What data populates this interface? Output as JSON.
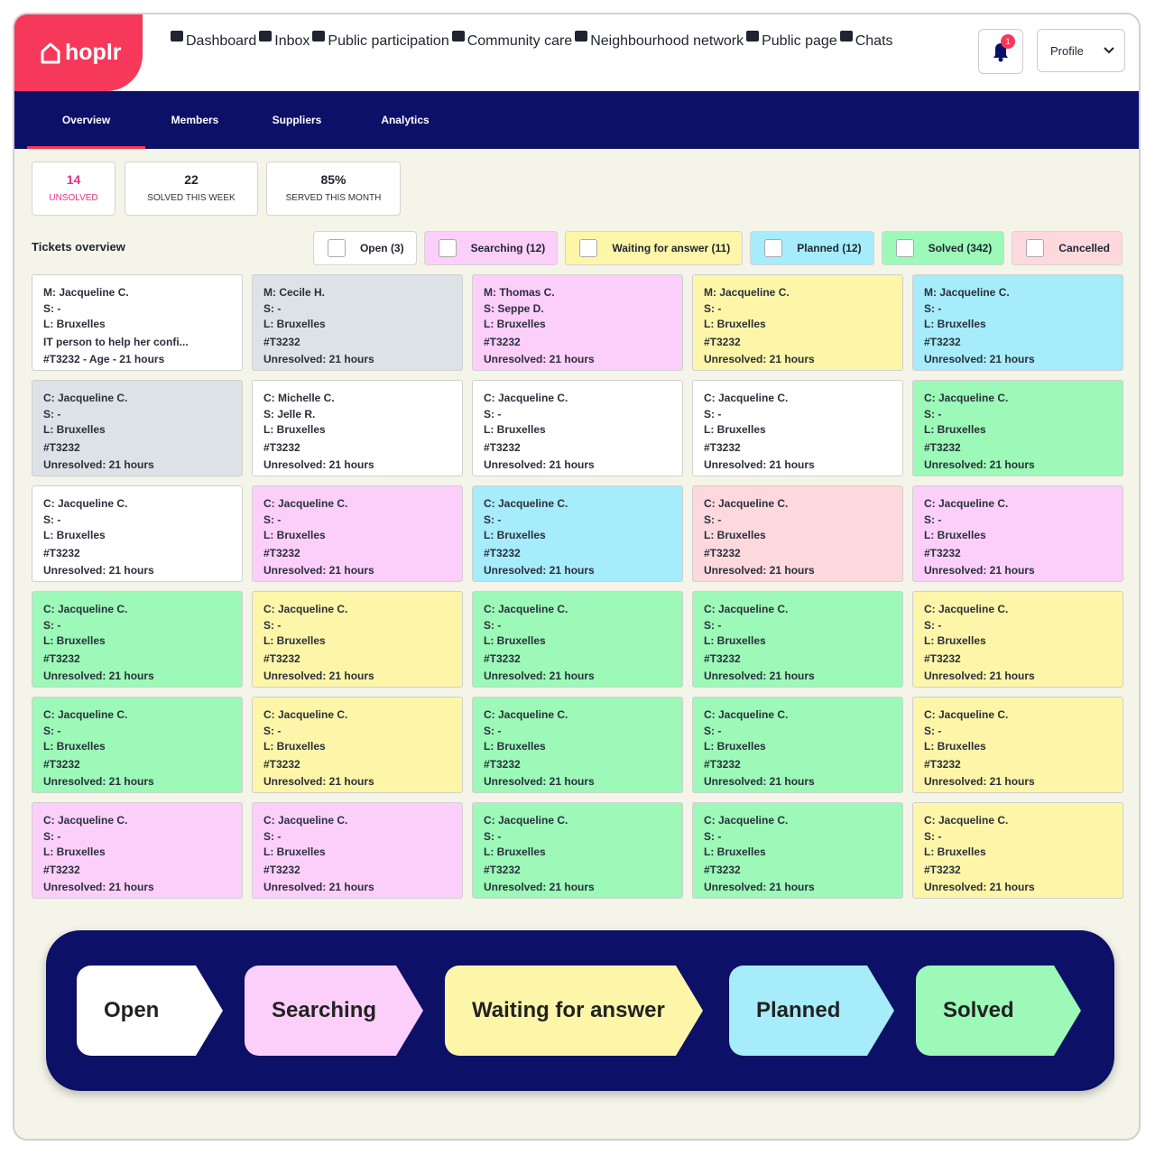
{
  "header": {
    "logo": "hoplr",
    "nav": [
      "Dashboard",
      "Inbox",
      "Public participation",
      "Community care",
      "Neighbourhood network",
      "Public page",
      "Chats"
    ],
    "notifications": "1",
    "profile": "Profile"
  },
  "subnav": [
    "Overview",
    "Members",
    "Suppliers",
    "Analytics"
  ],
  "stats": [
    {
      "value": "14",
      "label": "UNSOLVED"
    },
    {
      "value": "22",
      "label": "SOLVED THIS WEEK"
    },
    {
      "value": "85%",
      "label": "SERVED THIS MONTH"
    }
  ],
  "tickets_title": "Tickets overview",
  "filters": [
    {
      "label": "Open (3)",
      "color": "#ffffff"
    },
    {
      "label": "Searching (12)",
      "color": "#fccffb"
    },
    {
      "label": "Waiting for answer (11)",
      "color": "#fdf6a8"
    },
    {
      "label": "Planned (12)",
      "color": "#a6ecfb"
    },
    {
      "label": "Solved (342)",
      "color": "#9cf9b8"
    },
    {
      "label": "Cancelled",
      "color": "#fdd9de"
    }
  ],
  "tickets": [
    {
      "color": "#ffffff",
      "lines": [
        "M: Jacqueline C.",
        "S: -",
        "L: Bruxelles",
        "IT person to help her confi...",
        "#T3232 -  Age - 21 hours"
      ]
    },
    {
      "color": "#dde2e6",
      "lines": [
        "M: Cecile H.",
        "S: -",
        "L: Bruxelles",
        "#T3232",
        "Unresolved: 21 hours"
      ]
    },
    {
      "color": "#fccffb",
      "lines": [
        "M: Thomas C.",
        "S: Seppe D.",
        "L: Bruxelles",
        "#T3232",
        "Unresolved: 21 hours"
      ]
    },
    {
      "color": "#fdf6a8",
      "lines": [
        "M: Jacqueline C.",
        "S: -",
        "L: Bruxelles",
        "#T3232",
        "Unresolved: 21 hours"
      ]
    },
    {
      "color": "#a6ecfb",
      "lines": [
        "M: Jacqueline C.",
        "S: -",
        "L: Bruxelles",
        "#T3232",
        "Unresolved: 21 hours"
      ]
    },
    {
      "color": "#dde2e6",
      "lines": [
        "C: Jacqueline C.",
        "S: -",
        "L: Bruxelles",
        "#T3232",
        "Unresolved: 21 hours"
      ]
    },
    {
      "color": "#ffffff",
      "lines": [
        "C: Michelle C.",
        "S: Jelle R.",
        "L: Bruxelles",
        "#T3232",
        "Unresolved: 21 hours"
      ]
    },
    {
      "color": "#ffffff",
      "lines": [
        "C: Jacqueline C.",
        "S: -",
        "L: Bruxelles",
        "#T3232",
        "Unresolved: 21 hours"
      ]
    },
    {
      "color": "#ffffff",
      "lines": [
        "C: Jacqueline C.",
        "S: -",
        "L: Bruxelles",
        "#T3232",
        "Unresolved: 21 hours"
      ]
    },
    {
      "color": "#9cf9b8",
      "lines": [
        "C: Jacqueline C.",
        "S: -",
        "L: Bruxelles",
        "#T3232",
        "Unresolved: 21 hours"
      ]
    },
    {
      "color": "#ffffff",
      "lines": [
        "C: Jacqueline C.",
        "S: -",
        "L: Bruxelles",
        "#T3232",
        "Unresolved: 21 hours"
      ]
    },
    {
      "color": "#fccffb",
      "lines": [
        "C: Jacqueline C.",
        "S: -",
        "L: Bruxelles",
        "#T3232",
        "Unresolved: 21 hours"
      ]
    },
    {
      "color": "#a6ecfb",
      "lines": [
        "C: Jacqueline C.",
        "S: -",
        "L: Bruxelles",
        "#T3232",
        "Unresolved: 21 hours"
      ]
    },
    {
      "color": "#fdd9de",
      "lines": [
        "C: Jacqueline C.",
        "S: -",
        "L: Bruxelles",
        "#T3232",
        "Unresolved: 21 hours"
      ]
    },
    {
      "color": "#fccffb",
      "lines": [
        "C: Jacqueline C.",
        "S: -",
        "L: Bruxelles",
        "#T3232",
        "Unresolved: 21 hours"
      ]
    },
    {
      "color": "#9cf9b8",
      "lines": [
        "C: Jacqueline C.",
        "S: -",
        "L: Bruxelles",
        "#T3232",
        "Unresolved: 21 hours"
      ]
    },
    {
      "color": "#fdf6a8",
      "lines": [
        "C: Jacqueline C.",
        "S: -",
        "L: Bruxelles",
        "#T3232",
        "Unresolved: 21 hours"
      ]
    },
    {
      "color": "#9cf9b8",
      "lines": [
        "C: Jacqueline C.",
        "S: -",
        "L: Bruxelles",
        "#T3232",
        "Unresolved: 21 hours"
      ]
    },
    {
      "color": "#9cf9b8",
      "lines": [
        "C: Jacqueline C.",
        "S: -",
        "L: Bruxelles",
        "#T3232",
        "Unresolved: 21 hours"
      ]
    },
    {
      "color": "#fdf6a8",
      "lines": [
        "C: Jacqueline C.",
        "S: -",
        "L: Bruxelles",
        "#T3232",
        "Unresolved: 21 hours"
      ]
    },
    {
      "color": "#9cf9b8",
      "lines": [
        "C: Jacqueline C.",
        "S: -",
        "L: Bruxelles",
        "#T3232",
        "Unresolved: 21 hours"
      ]
    },
    {
      "color": "#fdf6a8",
      "lines": [
        "C: Jacqueline C.",
        "S: -",
        "L: Bruxelles",
        "#T3232",
        "Unresolved: 21 hours"
      ]
    },
    {
      "color": "#9cf9b8",
      "lines": [
        "C: Jacqueline C.",
        "S: -",
        "L: Bruxelles",
        "#T3232",
        "Unresolved: 21 hours"
      ]
    },
    {
      "color": "#9cf9b8",
      "lines": [
        "C: Jacqueline C.",
        "S: -",
        "L: Bruxelles",
        "#T3232",
        "Unresolved: 21 hours"
      ]
    },
    {
      "color": "#fdf6a8",
      "lines": [
        "C: Jacqueline C.",
        "S: -",
        "L: Bruxelles",
        "#T3232",
        "Unresolved: 21 hours"
      ]
    },
    {
      "color": "#fccffb",
      "lines": [
        "C: Jacqueline C.",
        "S: -",
        "L: Bruxelles",
        "#T3232",
        "Unresolved: 21 hours"
      ]
    },
    {
      "color": "#fccffb",
      "lines": [
        "C: Jacqueline C.",
        "S: -",
        "L: Bruxelles",
        "#T3232",
        "Unresolved: 21 hours"
      ]
    },
    {
      "color": "#9cf9b8",
      "lines": [
        "C: Jacqueline C.",
        "S: -",
        "L: Bruxelles",
        "#T3232",
        "Unresolved: 21 hours"
      ]
    },
    {
      "color": "#9cf9b8",
      "lines": [
        "C: Jacqueline C.",
        "S: -",
        "L: Bruxelles",
        "#T3232",
        "Unresolved: 21 hours"
      ]
    },
    {
      "color": "#fdf6a8",
      "lines": [
        "C: Jacqueline C.",
        "S: -",
        "L: Bruxelles",
        "#T3232",
        "Unresolved: 21 hours"
      ]
    }
  ],
  "flow": [
    {
      "label": "Open",
      "color": "#ffffff"
    },
    {
      "label": "Searching",
      "color": "#fccffb"
    },
    {
      "label": "Waiting for answer",
      "color": "#fdf6a8"
    },
    {
      "label": "Planned",
      "color": "#a6ecfb"
    },
    {
      "label": "Solved",
      "color": "#9cf9b8"
    }
  ]
}
